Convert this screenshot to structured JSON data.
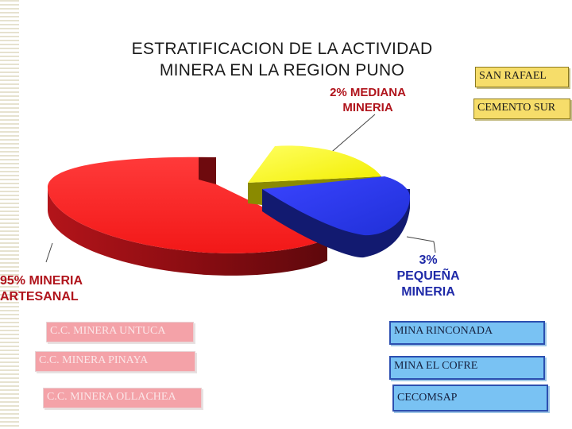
{
  "chart_data": {
    "type": "pie",
    "title_lines": [
      "ESTRATIFICACION DE LA ACTIVIDAD",
      "MINERA EN LA REGION PUNO"
    ],
    "slices": [
      {
        "label_lines": [
          "95% MINERIA",
          "ARTESANAL"
        ],
        "value": 95,
        "color": "#ff2b2b",
        "name": "artesanal"
      },
      {
        "label_lines": [
          "2% MEDIANA",
          "MINERIA"
        ],
        "value": 2,
        "color": "#ffff00",
        "name": "mediana"
      },
      {
        "label_lines": [
          "3%",
          "PEQUEÑA",
          "MINERIA"
        ],
        "value": 3,
        "color": "#2f3cf0",
        "name": "pequena"
      }
    ]
  },
  "companies": {
    "mediana": [
      "SAN RAFAEL",
      "CEMENTO SUR"
    ],
    "artesanal": [
      "C.C. MINERA UNTUCA",
      "C.C. MINERA PINAYA",
      "C.C. MINERA  OLLACHEA"
    ],
    "pequena": [
      "MINA RINCONADA",
      "MINA  EL COFRE",
      "CECOMSAP"
    ]
  },
  "colors": {
    "artesanal_top": "#ff2b2b",
    "mediana_top": "#ffff00",
    "pequena_top": "#2f3cf0"
  }
}
